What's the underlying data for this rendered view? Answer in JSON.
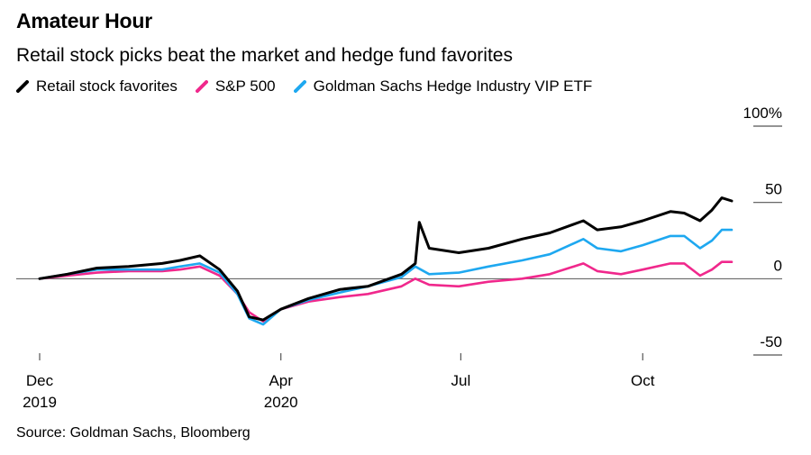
{
  "title": "Amateur Hour",
  "subtitle": "Retail stock picks beat the market and hedge fund favorites",
  "source": "Source: Goldman Sachs, Bloomberg",
  "colors": {
    "retail": "#000000",
    "sp500": "#f0288c",
    "hedge": "#1ea8f0",
    "zero_line": "#555555",
    "grid_tick": "#555555"
  },
  "chart_data": {
    "type": "line",
    "title": "Amateur Hour",
    "subtitle": "Retail stock picks beat the market and hedge fund favorites",
    "ylim": [
      -50,
      100
    ],
    "y_ticks": [
      {
        "value": 100,
        "label": "100%"
      },
      {
        "value": 50,
        "label": "50"
      },
      {
        "value": 0,
        "label": "0"
      },
      {
        "value": -50,
        "label": "-50"
      }
    ],
    "x_ticks": [
      {
        "date": "2019-12-01",
        "line1": "Dec",
        "line2": "2019"
      },
      {
        "date": "2020-04-01",
        "line1": "Apr",
        "line2": "2020"
      },
      {
        "date": "2020-07-01",
        "line1": "Jul",
        "line2": ""
      },
      {
        "date": "2020-10-01",
        "line1": "Oct",
        "line2": ""
      }
    ],
    "xlim": [
      "2019-12-01",
      "2020-11-15"
    ],
    "series": [
      {
        "name": "Retail stock favorites",
        "color_key": "retail",
        "points": [
          [
            "2019-12-01",
            0
          ],
          [
            "2019-12-15",
            3
          ],
          [
            "2019-12-30",
            7
          ],
          [
            "2020-01-15",
            8
          ],
          [
            "2020-02-01",
            10
          ],
          [
            "2020-02-10",
            12
          ],
          [
            "2020-02-20",
            15
          ],
          [
            "2020-03-01",
            6
          ],
          [
            "2020-03-10",
            -8
          ],
          [
            "2020-03-16",
            -25
          ],
          [
            "2020-03-23",
            -27
          ],
          [
            "2020-04-01",
            -20
          ],
          [
            "2020-04-15",
            -13
          ],
          [
            "2020-05-01",
            -7
          ],
          [
            "2020-05-15",
            -5
          ],
          [
            "2020-06-01",
            3
          ],
          [
            "2020-06-08",
            10
          ],
          [
            "2020-06-10",
            37
          ],
          [
            "2020-06-15",
            20
          ],
          [
            "2020-06-30",
            17
          ],
          [
            "2020-07-15",
            20
          ],
          [
            "2020-08-01",
            26
          ],
          [
            "2020-08-15",
            30
          ],
          [
            "2020-09-01",
            38
          ],
          [
            "2020-09-08",
            32
          ],
          [
            "2020-09-20",
            34
          ],
          [
            "2020-10-01",
            38
          ],
          [
            "2020-10-15",
            44
          ],
          [
            "2020-10-22",
            43
          ],
          [
            "2020-10-30",
            38
          ],
          [
            "2020-11-05",
            45
          ],
          [
            "2020-11-10",
            53
          ],
          [
            "2020-11-15",
            51
          ]
        ]
      },
      {
        "name": "S&P 500",
        "color_key": "sp500",
        "points": [
          [
            "2019-12-01",
            0
          ],
          [
            "2019-12-15",
            2
          ],
          [
            "2019-12-30",
            4
          ],
          [
            "2020-01-15",
            5
          ],
          [
            "2020-02-01",
            5
          ],
          [
            "2020-02-10",
            6
          ],
          [
            "2020-02-20",
            8
          ],
          [
            "2020-03-01",
            2
          ],
          [
            "2020-03-10",
            -10
          ],
          [
            "2020-03-16",
            -22
          ],
          [
            "2020-03-23",
            -28
          ],
          [
            "2020-04-01",
            -20
          ],
          [
            "2020-04-15",
            -15
          ],
          [
            "2020-05-01",
            -12
          ],
          [
            "2020-05-15",
            -10
          ],
          [
            "2020-06-01",
            -5
          ],
          [
            "2020-06-08",
            0
          ],
          [
            "2020-06-15",
            -4
          ],
          [
            "2020-06-30",
            -5
          ],
          [
            "2020-07-15",
            -2
          ],
          [
            "2020-08-01",
            0
          ],
          [
            "2020-08-15",
            3
          ],
          [
            "2020-09-01",
            10
          ],
          [
            "2020-09-08",
            5
          ],
          [
            "2020-09-20",
            3
          ],
          [
            "2020-10-01",
            6
          ],
          [
            "2020-10-15",
            10
          ],
          [
            "2020-10-22",
            10
          ],
          [
            "2020-10-30",
            2
          ],
          [
            "2020-11-05",
            6
          ],
          [
            "2020-11-10",
            11
          ],
          [
            "2020-11-15",
            11
          ]
        ]
      },
      {
        "name": "Goldman Sachs Hedge Industry VIP ETF",
        "color_key": "hedge",
        "points": [
          [
            "2019-12-01",
            0
          ],
          [
            "2019-12-15",
            3
          ],
          [
            "2019-12-30",
            6
          ],
          [
            "2020-01-15",
            6
          ],
          [
            "2020-02-01",
            6
          ],
          [
            "2020-02-10",
            8
          ],
          [
            "2020-02-20",
            10
          ],
          [
            "2020-03-01",
            4
          ],
          [
            "2020-03-10",
            -10
          ],
          [
            "2020-03-16",
            -26
          ],
          [
            "2020-03-23",
            -30
          ],
          [
            "2020-04-01",
            -20
          ],
          [
            "2020-04-15",
            -14
          ],
          [
            "2020-05-01",
            -9
          ],
          [
            "2020-05-15",
            -5
          ],
          [
            "2020-06-01",
            1
          ],
          [
            "2020-06-08",
            8
          ],
          [
            "2020-06-15",
            3
          ],
          [
            "2020-06-30",
            4
          ],
          [
            "2020-07-15",
            8
          ],
          [
            "2020-08-01",
            12
          ],
          [
            "2020-08-15",
            16
          ],
          [
            "2020-09-01",
            26
          ],
          [
            "2020-09-08",
            20
          ],
          [
            "2020-09-20",
            18
          ],
          [
            "2020-10-01",
            22
          ],
          [
            "2020-10-15",
            28
          ],
          [
            "2020-10-22",
            28
          ],
          [
            "2020-10-30",
            20
          ],
          [
            "2020-11-05",
            25
          ],
          [
            "2020-11-10",
            32
          ],
          [
            "2020-11-15",
            32
          ]
        ]
      }
    ]
  }
}
